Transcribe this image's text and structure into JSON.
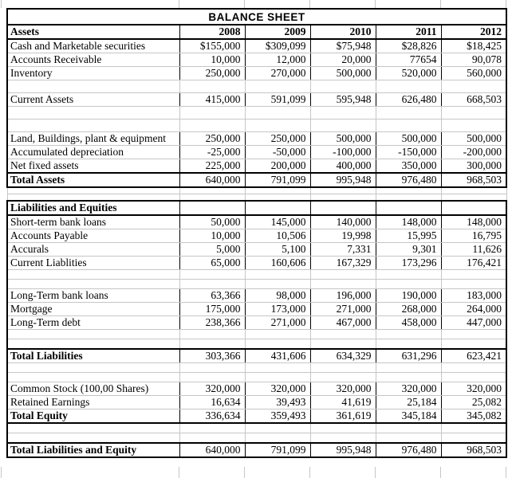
{
  "title": "BALANCE SHEET",
  "table": {
    "columns": [
      "Assets",
      "2008",
      "2009",
      "2010",
      "2011",
      "2012"
    ],
    "rows": [
      {
        "kind": "data",
        "label": "Cash and Marketable securities",
        "values": [
          "$155,000",
          "$309,099",
          "$75,948",
          "$28,826",
          "$18,425"
        ]
      },
      {
        "kind": "data",
        "label": "Accounts Receivable",
        "values": [
          "10,000",
          "12,000",
          "20,000",
          "77654",
          "90,078"
        ]
      },
      {
        "kind": "data",
        "label": "Inventory",
        "values": [
          "250,000",
          "270,000",
          "500,000",
          "520,000",
          "560,000"
        ]
      },
      {
        "kind": "blank"
      },
      {
        "kind": "data",
        "label": "Current Assets",
        "values": [
          "415,000",
          "591,099",
          "595,948",
          "626,480",
          "668,503"
        ]
      },
      {
        "kind": "blank"
      },
      {
        "kind": "blank"
      },
      {
        "kind": "data",
        "label": "Land, Buildings, plant & equipment",
        "values": [
          "250,000",
          "250,000",
          "500,000",
          "500,000",
          "500,000"
        ]
      },
      {
        "kind": "data",
        "label": "Accumulated depreciation",
        "values": [
          "-25,000",
          "-50,000",
          "-100,000",
          "-150,000",
          "-200,000"
        ]
      },
      {
        "kind": "data",
        "label": "Net fixed assets",
        "values": [
          "225,000",
          "200,000",
          "400,000",
          "350,000",
          "300,000"
        ]
      },
      {
        "kind": "total",
        "label": "Total Assets",
        "values": [
          "640,000",
          "791,099",
          "995,948",
          "976,480",
          "968,503"
        ]
      },
      {
        "kind": "gap"
      },
      {
        "kind": "gap"
      },
      {
        "kind": "sechead",
        "label": "Liabilities and Equities",
        "values": [
          "",
          "",
          "",
          "",
          ""
        ]
      },
      {
        "kind": "data",
        "label": "Short-term bank loans",
        "values": [
          "50,000",
          "145,000",
          "140,000",
          "148,000",
          "148,000"
        ]
      },
      {
        "kind": "data",
        "label": "Accounts Payable",
        "values": [
          "10,000",
          "10,506",
          "19,998",
          "15,995",
          "16,795"
        ]
      },
      {
        "kind": "data",
        "label": "Accurals",
        "values": [
          "5,000",
          "5,100",
          "7,331",
          "9,301",
          "11,626"
        ]
      },
      {
        "kind": "data",
        "label": "Current Liablities",
        "values": [
          "65,000",
          "160,606",
          "167,329",
          "173,296",
          "176,421"
        ]
      },
      {
        "kind": "blank-sm"
      },
      {
        "kind": "blank-sm"
      },
      {
        "kind": "data",
        "label": "Long-Term bank loans",
        "values": [
          "63,366",
          "98,000",
          "196,000",
          "190,000",
          "183,000"
        ]
      },
      {
        "kind": "data",
        "label": "Mortgage",
        "values": [
          "175,000",
          "173,000",
          "271,000",
          "268,000",
          "264,000"
        ]
      },
      {
        "kind": "data",
        "label": "Long-Term debt",
        "values": [
          "238,366",
          "271,000",
          "467,000",
          "458,000",
          "447,000"
        ]
      },
      {
        "kind": "blank-sm"
      },
      {
        "kind": "blank-sm"
      },
      {
        "kind": "total-top",
        "label": "Total Liabilities",
        "values": [
          "303,366",
          "431,606",
          "634,329",
          "631,296",
          "623,421"
        ]
      },
      {
        "kind": "blank-sm"
      },
      {
        "kind": "blank-sm"
      },
      {
        "kind": "data",
        "label": "Common Stock (100,00 Shares)",
        "values": [
          "320,000",
          "320,000",
          "320,000",
          "320,000",
          "320,000"
        ]
      },
      {
        "kind": "data",
        "label": "Retained Earnings",
        "values": [
          "16,634",
          "39,493",
          "41,619",
          "25,184",
          "25,082"
        ]
      },
      {
        "kind": "total-bottom",
        "label": "Total Equity",
        "values": [
          "336,634",
          "359,493",
          "361,619",
          "345,184",
          "345,082"
        ]
      },
      {
        "kind": "blank-sm"
      },
      {
        "kind": "blank-sm"
      },
      {
        "kind": "total",
        "label": "Total Liabilities and Equity",
        "values": [
          "640,000",
          "791,099",
          "995,948",
          "976,480",
          "968,503"
        ]
      }
    ]
  }
}
